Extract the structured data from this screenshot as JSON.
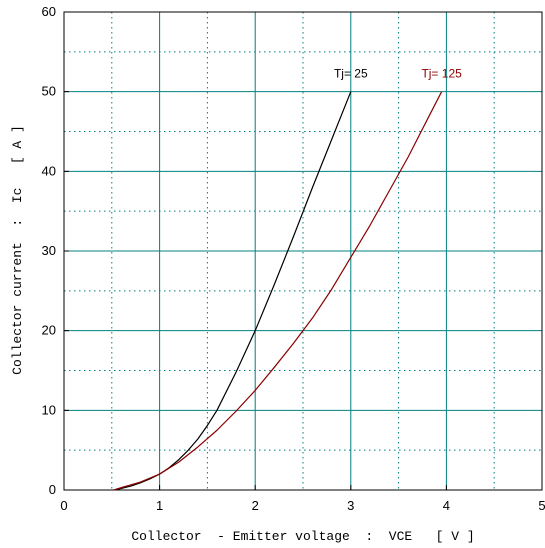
{
  "chart_data": {
    "type": "line",
    "xlabel": "Collector  - Emitter voltage  :  VCE   [ V ]",
    "ylabel": "Collector current  :  Ic   [ A ]",
    "xlim": [
      0,
      5
    ],
    "ylim": [
      0,
      60
    ],
    "x_ticks": [
      "0",
      "1",
      "2",
      "3",
      "4",
      "5"
    ],
    "y_ticks": [
      "0",
      "10",
      "20",
      "30",
      "40",
      "50",
      "60"
    ],
    "major_grid": true,
    "minor_grid": true,
    "minor_grid_style": "dotted",
    "grid_color": "#008080",
    "series": [
      {
        "name": "Tj= 25",
        "color": "#000000",
        "x": [
          0.52,
          0.6,
          0.7,
          0.8,
          0.9,
          1.0,
          1.1,
          1.2,
          1.3,
          1.4,
          1.5,
          1.6,
          1.8,
          2.0,
          2.2,
          2.4,
          2.6,
          2.8,
          3.0
        ],
        "y": [
          0,
          0.2,
          0.5,
          0.9,
          1.4,
          2.0,
          2.8,
          3.8,
          5.0,
          6.4,
          8.1,
          10.0,
          14.8,
          20.0,
          25.8,
          31.8,
          38.0,
          44.0,
          50.0
        ]
      },
      {
        "name": "Tj= 125",
        "color": "#8b0000",
        "x": [
          0.52,
          0.6,
          0.8,
          1.0,
          1.2,
          1.4,
          1.6,
          1.8,
          2.0,
          2.2,
          2.4,
          2.6,
          2.8,
          3.0,
          3.2,
          3.4,
          3.6,
          3.8,
          3.95
        ],
        "y": [
          0,
          0.3,
          1.0,
          2.0,
          3.5,
          5.4,
          7.5,
          9.9,
          12.5,
          15.4,
          18.4,
          21.6,
          25.2,
          29.2,
          33.2,
          37.5,
          41.8,
          46.5,
          50.0
        ]
      }
    ]
  }
}
